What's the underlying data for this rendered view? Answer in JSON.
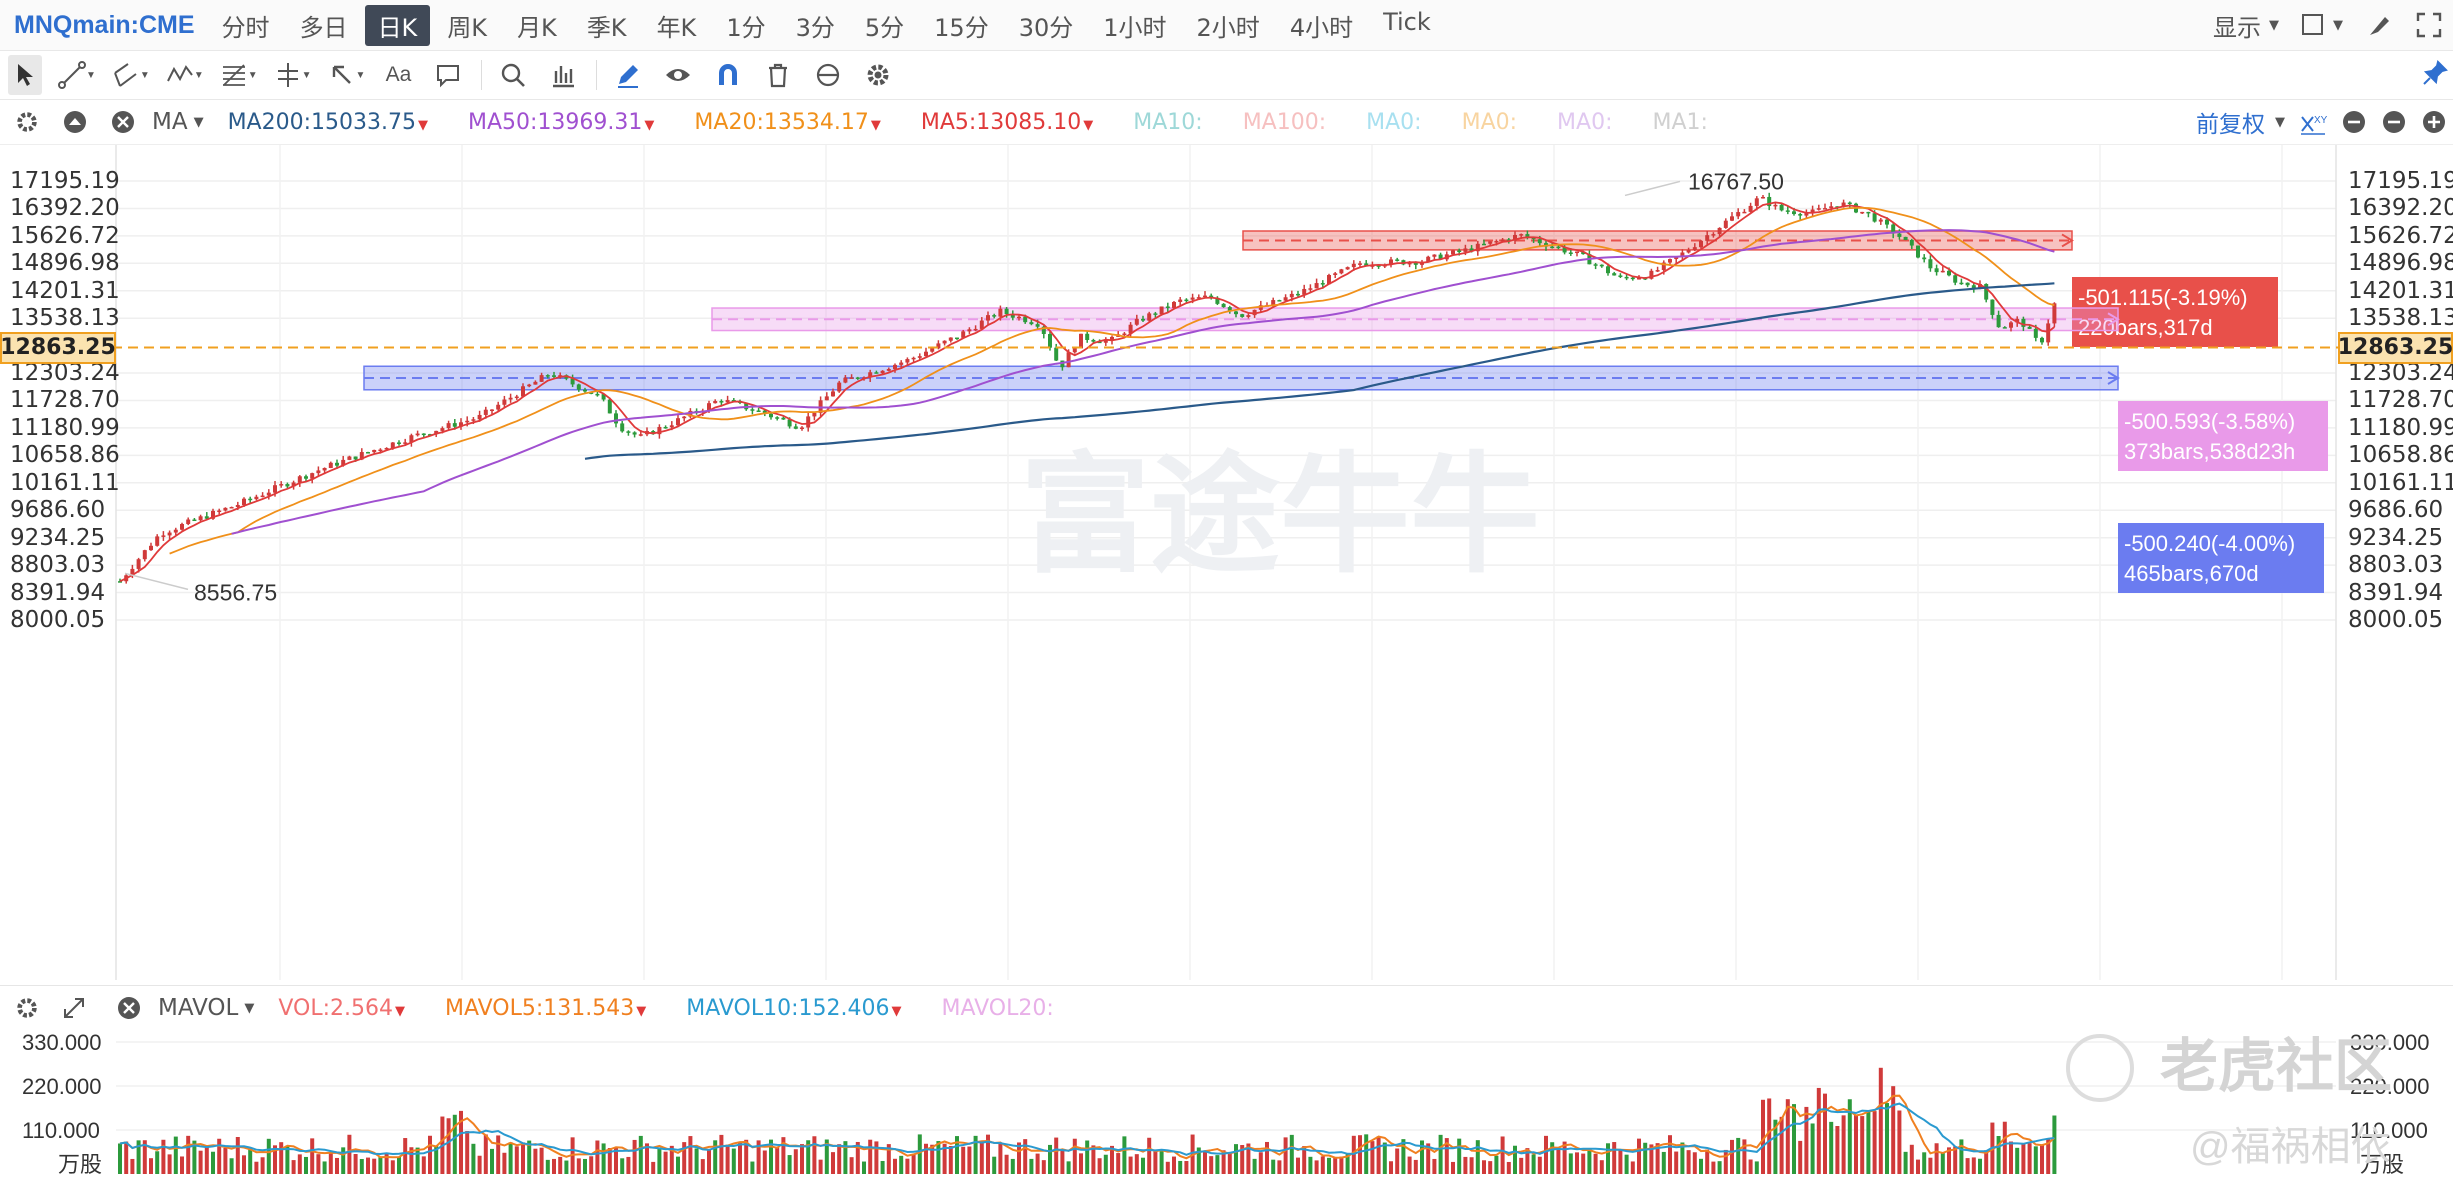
{
  "topbar": {
    "symbol": "MNQmain:CME",
    "periods": [
      "分时",
      "多日",
      "日K",
      "周K",
      "月K",
      "季K",
      "年K",
      "1分",
      "3分",
      "5分",
      "15分",
      "30分",
      "1小时",
      "2小时",
      "4小时",
      "Tick"
    ],
    "active_period": "日K",
    "display_label": "显示"
  },
  "toolbar": {
    "text_tool_label": "Aa",
    "icons": [
      "cursor-icon",
      "line-tool-icon",
      "channel-tool-icon",
      "wave-tool-icon",
      "fib-tool-icon",
      "measure-tool-icon",
      "arrow-tool-icon",
      "text-tool-icon",
      "comment-icon",
      "zoom-icon",
      "data-icon",
      "pencil-icon",
      "eye-icon",
      "magnet-icon",
      "trash-icon",
      "sync-icon",
      "settings-icon",
      "pin-icon"
    ]
  },
  "indicator": {
    "name": "MA",
    "values": [
      {
        "label": "MA200:15033.75",
        "color": "#2a5a8a",
        "arrow": "down"
      },
      {
        "label": "MA50:13969.31",
        "color": "#a050d0",
        "arrow": "down"
      },
      {
        "label": "MA20:13534.17",
        "color": "#f0901a",
        "arrow": "down"
      },
      {
        "label": "MA5:13085.10",
        "color": "#e03a3a",
        "arrow": "down"
      },
      {
        "label": "MA10:",
        "color": "#9ed8d8",
        "arrow": ""
      },
      {
        "label": "MA100:",
        "color": "#f6c0c0",
        "arrow": ""
      },
      {
        "label": "MA0:",
        "color": "#a8e0f0",
        "arrow": ""
      },
      {
        "label": "MA0:",
        "color": "#f8d4a0",
        "arrow": ""
      },
      {
        "label": "MA0:",
        "color": "#e0c8f0",
        "arrow": ""
      },
      {
        "label": "MA1:",
        "color": "#d0d0d0",
        "arrow": ""
      }
    ],
    "adjust_label": "前复权"
  },
  "volume": {
    "name": "MAVOL",
    "values": [
      {
        "label": "VOL:2.564",
        "color": "#f07070",
        "arrow": "down"
      },
      {
        "label": "MAVOL5:131.543",
        "color": "#f08020",
        "arrow": "down"
      },
      {
        "label": "MAVOL10:152.406",
        "color": "#2a9ad0",
        "arrow": "down"
      },
      {
        "label": "MAVOL20:",
        "color": "#e8b0e8",
        "arrow": ""
      }
    ],
    "axis_labels": [
      "330.000",
      "220.000",
      "110.000"
    ],
    "unit": "万股"
  },
  "price_axis": {
    "left_labels": [
      "17195.19",
      "16392.20",
      "15626.72",
      "14896.98",
      "14201.31",
      "13538.13",
      "12303.24",
      "11728.70",
      "11180.99",
      "10658.86",
      "10161.11",
      "9686.60",
      "9234.25",
      "8803.03",
      "8391.94",
      "8000.05"
    ],
    "right_labels": [
      "17195.19",
      "16392.20",
      "15626.72",
      "14896.98",
      "14201.31",
      "13538.13",
      "12303.24",
      "11728.70",
      "11180.99",
      "10658.86",
      "10161.11",
      "9686.60",
      "9234.25",
      "8803.03",
      "8391.94",
      "8000.05"
    ],
    "current_price": "12863.25"
  },
  "annotations": {
    "high_label": "16767.50",
    "low_label": "8556.75",
    "measure_red": {
      "line1": "-501.115(-3.19%)",
      "line2": "220bars,317d",
      "color": "#e8504a"
    },
    "measure_pink": {
      "line1": "-500.593(-3.58%)",
      "line2": "373bars,538d23h",
      "color": "#e99ae9"
    },
    "measure_blue": {
      "line1": "-500.240(-4.00%)",
      "line2": "465bars,670d",
      "color": "#6b7cf0"
    }
  },
  "watermarks": {
    "center": "富途牛牛",
    "community": "老虎社区",
    "author": "@福祸相依"
  },
  "chart_data": {
    "type": "candlestick",
    "y_range": [
      8000.05,
      17195.19
    ],
    "high": 16767.5,
    "low": 8556.75,
    "last": 12863.25,
    "series": [
      {
        "name": "MA200",
        "last": 15033.75
      },
      {
        "name": "MA50",
        "last": 13969.31
      },
      {
        "name": "MA20",
        "last": 13534.17
      },
      {
        "name": "MA5",
        "last": 13085.1
      }
    ]
  }
}
